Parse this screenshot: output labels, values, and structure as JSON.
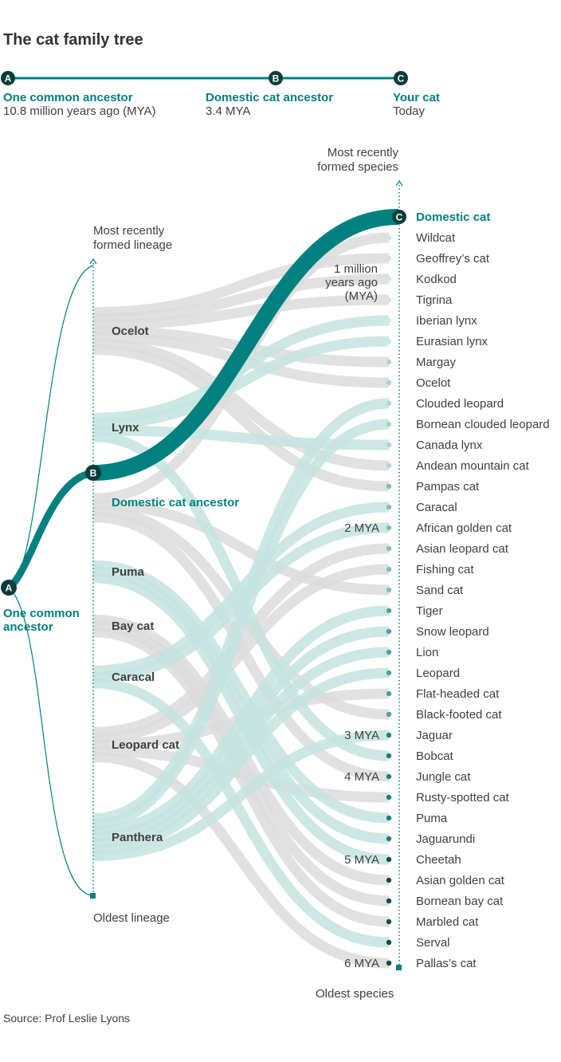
{
  "title": "The cat family tree",
  "timeline": {
    "a": {
      "badge": "A",
      "label": "One common ancestor",
      "sub": "10.8 million years ago (MYA)"
    },
    "b": {
      "badge": "B",
      "label": "Domestic cat ancestor",
      "sub": "3.4 MYA"
    },
    "c": {
      "badge": "C",
      "label": "Your cat",
      "sub": "Today"
    }
  },
  "axis_labels": {
    "lineage_top_1": "Most recently",
    "lineage_top_2": "formed lineage",
    "lineage_bottom": "Oldest lineage",
    "species_top_1": "Most recently",
    "species_top_2": "formed species",
    "species_bottom": "Oldest species"
  },
  "ancestor": {
    "badge": "A",
    "label_1": "One common",
    "label_2": "ancestor"
  },
  "lineages": [
    {
      "name": "Ocelot"
    },
    {
      "name": "Lynx"
    },
    {
      "name": "Domestic cat ancestor",
      "badge": "B",
      "highlight": true
    },
    {
      "name": "Puma"
    },
    {
      "name": "Bay cat"
    },
    {
      "name": "Caracal"
    },
    {
      "name": "Leopard cat"
    },
    {
      "name": "Panthera"
    }
  ],
  "species": [
    {
      "name": "Domestic cat",
      "lineage": "Domestic cat ancestor",
      "badge": "C",
      "highlight": true
    },
    {
      "name": "Wildcat",
      "lineage": "Domestic cat ancestor"
    },
    {
      "name": "Geoffrey’s cat",
      "lineage": "Ocelot"
    },
    {
      "name": "Kodkod",
      "lineage": "Ocelot"
    },
    {
      "name": "Tigrina",
      "lineage": "Ocelot"
    },
    {
      "name": "Iberian lynx",
      "lineage": "Lynx"
    },
    {
      "name": "Eurasian lynx",
      "lineage": "Lynx"
    },
    {
      "name": "Margay",
      "lineage": "Ocelot"
    },
    {
      "name": "Ocelot",
      "lineage": "Ocelot"
    },
    {
      "name": "Clouded leopard",
      "lineage": "Panthera"
    },
    {
      "name": "Bornean clouded leopard",
      "lineage": "Panthera"
    },
    {
      "name": "Canada lynx",
      "lineage": "Lynx"
    },
    {
      "name": "Andean mountain cat",
      "lineage": "Ocelot"
    },
    {
      "name": "Pampas cat",
      "lineage": "Ocelot"
    },
    {
      "name": "Caracal",
      "lineage": "Caracal"
    },
    {
      "name": "African golden cat",
      "lineage": "Caracal"
    },
    {
      "name": "Asian leopard cat",
      "lineage": "Leopard cat"
    },
    {
      "name": "Fishing cat",
      "lineage": "Leopard cat"
    },
    {
      "name": "Sand cat",
      "lineage": "Domestic cat ancestor"
    },
    {
      "name": "Tiger",
      "lineage": "Panthera"
    },
    {
      "name": "Snow leopard",
      "lineage": "Panthera"
    },
    {
      "name": "Lion",
      "lineage": "Panthera"
    },
    {
      "name": "Leopard",
      "lineage": "Panthera"
    },
    {
      "name": "Flat-headed cat",
      "lineage": "Leopard cat"
    },
    {
      "name": "Black-footed cat",
      "lineage": "Domestic cat ancestor"
    },
    {
      "name": "Jaguar",
      "lineage": "Panthera"
    },
    {
      "name": "Bobcat",
      "lineage": "Lynx"
    },
    {
      "name": "Jungle cat",
      "lineage": "Domestic cat ancestor"
    },
    {
      "name": "Rusty-spotted cat",
      "lineage": "Leopard cat"
    },
    {
      "name": "Puma",
      "lineage": "Puma"
    },
    {
      "name": "Jaguarundi",
      "lineage": "Puma"
    },
    {
      "name": "Cheetah",
      "lineage": "Puma"
    },
    {
      "name": "Asian golden cat",
      "lineage": "Bay cat"
    },
    {
      "name": "Bornean bay cat",
      "lineage": "Bay cat"
    },
    {
      "name": "Marbled cat",
      "lineage": "Bay cat"
    },
    {
      "name": "Serval",
      "lineage": "Caracal"
    },
    {
      "name": "Pallas’s cat",
      "lineage": "Leopard cat"
    }
  ],
  "mya_markers": [
    {
      "label_1": "1 million",
      "label_2": "years ago",
      "label_3": "(MYA)",
      "after_species": 4
    },
    {
      "label": "2 MYA",
      "at_species": 15
    },
    {
      "label": "3 MYA",
      "at_species": 25
    },
    {
      "label": "4 MYA",
      "at_species": 27
    },
    {
      "label": "5 MYA",
      "at_species": 31
    },
    {
      "label": "6 MYA",
      "at_species": 36
    }
  ],
  "colors": {
    "teal": "#00807f",
    "teal_light": "#c4e3e1",
    "grey_band": "#dcdcdc",
    "dark_badge": "#0b3d3a"
  },
  "source": "Source: Prof Leslie Lyons"
}
